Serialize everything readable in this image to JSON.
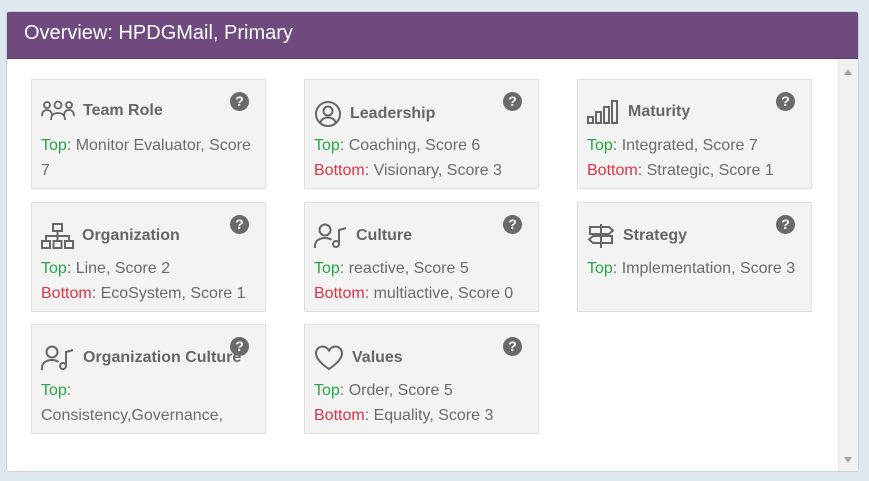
{
  "header": {
    "title": "Overview: HPDGMail, Primary"
  },
  "colors": {
    "header_bg": "#6e4a7f",
    "top": "#27a745",
    "bottom": "#dc3545"
  },
  "cards": [
    {
      "title": "Team Role",
      "icon": "team-icon",
      "help": "?",
      "top_label": "Top",
      "top_value": ": Monitor Evaluator, Score 7"
    },
    {
      "title": "Leadership",
      "icon": "user-circle-icon",
      "help": "?",
      "top_label": "Top",
      "top_value": ": Coaching, Score 6",
      "bottom_label": "Bottom",
      "bottom_value": ": Visionary, Score 3"
    },
    {
      "title": "Maturity",
      "icon": "bar-chart-icon",
      "help": "?",
      "top_label": "Top",
      "top_value": ": Integrated, Score 7",
      "bottom_label": "Bottom",
      "bottom_value": ": Strategic, Score 1"
    },
    {
      "title": "Organization",
      "icon": "org-chart-icon",
      "help": "?",
      "top_label": "Top",
      "top_value": ": Line, Score 2",
      "bottom_label": "Bottom",
      "bottom_value": ": EcoSystem, Score 1"
    },
    {
      "title": "Culture",
      "icon": "user-music-icon",
      "help": "?",
      "top_label": "Top",
      "top_value": ": reactive, Score 5",
      "bottom_label": "Bottom",
      "bottom_value": ": multiactive, Score 0"
    },
    {
      "title": "Strategy",
      "icon": "signpost-icon",
      "help": "?",
      "top_label": "Top",
      "top_value": ": Implementation, Score 3"
    },
    {
      "title": "Organization Culture",
      "icon": "user-music-icon",
      "help": "?",
      "top_label": "Top",
      "top_value": ":",
      "extra_line": "Consistency,Governance,"
    },
    {
      "title": "Values",
      "icon": "heart-icon",
      "help": "?",
      "top_label": "Top",
      "top_value": ": Order, Score 5",
      "bottom_label": "Bottom",
      "bottom_value": ": Equality, Score 3"
    }
  ]
}
